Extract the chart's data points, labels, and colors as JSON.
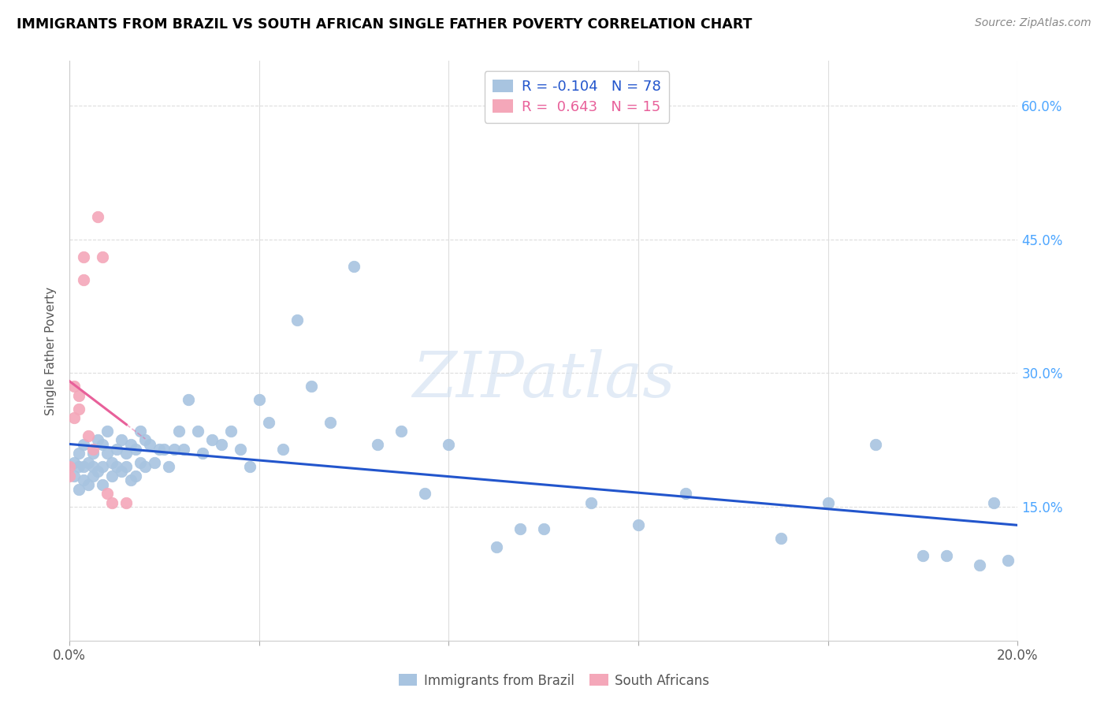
{
  "title": "IMMIGRANTS FROM BRAZIL VS SOUTH AFRICAN SINGLE FATHER POVERTY CORRELATION CHART",
  "source": "Source: ZipAtlas.com",
  "ylabel": "Single Father Poverty",
  "ytick_labels": [
    "60.0%",
    "45.0%",
    "30.0%",
    "15.0%"
  ],
  "ytick_values": [
    0.6,
    0.45,
    0.3,
    0.15
  ],
  "legend_blue_r": "-0.104",
  "legend_blue_n": "78",
  "legend_pink_r": "0.643",
  "legend_pink_n": "15",
  "legend_label_blue": "Immigrants from Brazil",
  "legend_label_pink": "South Africans",
  "blue_color": "#a8c4e0",
  "pink_color": "#f4a7b9",
  "blue_line_color": "#2255cc",
  "pink_line_color": "#e8609a",
  "watermark_color": "#d0dff0",
  "watermark": "ZIPatlas",
  "brazil_x": [
    0.0,
    0.001,
    0.001,
    0.002,
    0.002,
    0.002,
    0.003,
    0.003,
    0.003,
    0.004,
    0.004,
    0.005,
    0.005,
    0.005,
    0.006,
    0.006,
    0.007,
    0.007,
    0.007,
    0.008,
    0.008,
    0.009,
    0.009,
    0.01,
    0.01,
    0.011,
    0.011,
    0.012,
    0.012,
    0.013,
    0.013,
    0.014,
    0.014,
    0.015,
    0.015,
    0.016,
    0.016,
    0.017,
    0.018,
    0.019,
    0.02,
    0.021,
    0.022,
    0.023,
    0.024,
    0.025,
    0.027,
    0.028,
    0.03,
    0.032,
    0.034,
    0.036,
    0.038,
    0.04,
    0.042,
    0.045,
    0.048,
    0.051,
    0.055,
    0.06,
    0.065,
    0.07,
    0.075,
    0.08,
    0.09,
    0.095,
    0.1,
    0.11,
    0.12,
    0.13,
    0.15,
    0.16,
    0.17,
    0.18,
    0.185,
    0.192,
    0.195,
    0.198
  ],
  "brazil_y": [
    0.195,
    0.2,
    0.185,
    0.17,
    0.21,
    0.195,
    0.18,
    0.22,
    0.195,
    0.2,
    0.175,
    0.21,
    0.195,
    0.185,
    0.225,
    0.19,
    0.22,
    0.195,
    0.175,
    0.235,
    0.21,
    0.2,
    0.185,
    0.215,
    0.195,
    0.225,
    0.19,
    0.21,
    0.195,
    0.22,
    0.18,
    0.215,
    0.185,
    0.235,
    0.2,
    0.225,
    0.195,
    0.22,
    0.2,
    0.215,
    0.215,
    0.195,
    0.215,
    0.235,
    0.215,
    0.27,
    0.235,
    0.21,
    0.225,
    0.22,
    0.235,
    0.215,
    0.195,
    0.27,
    0.245,
    0.215,
    0.36,
    0.285,
    0.245,
    0.42,
    0.22,
    0.235,
    0.165,
    0.22,
    0.105,
    0.125,
    0.125,
    0.155,
    0.13,
    0.165,
    0.115,
    0.155,
    0.22,
    0.095,
    0.095,
    0.085,
    0.155,
    0.09
  ],
  "sa_x": [
    0.0,
    0.0,
    0.001,
    0.001,
    0.002,
    0.002,
    0.003,
    0.003,
    0.004,
    0.005,
    0.006,
    0.007,
    0.008,
    0.009,
    0.012
  ],
  "sa_y": [
    0.195,
    0.185,
    0.285,
    0.25,
    0.275,
    0.26,
    0.43,
    0.405,
    0.23,
    0.215,
    0.475,
    0.43,
    0.165,
    0.155,
    0.155
  ],
  "xmin": 0.0,
  "xmax": 0.2,
  "ymin": 0.0,
  "ymax": 0.65,
  "xtick_positions": [
    0.0,
    0.04,
    0.08,
    0.12,
    0.16,
    0.2
  ],
  "xtick_show_labels": [
    true,
    false,
    false,
    false,
    false,
    true
  ]
}
